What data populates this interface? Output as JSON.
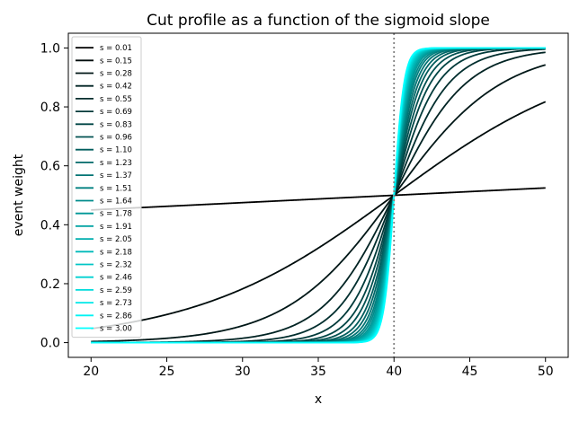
{
  "chart_data": {
    "type": "line",
    "title": "Cut profile as a function of the sigmoid slope",
    "xlabel": "x",
    "ylabel": "event weight",
    "xlim": [
      18.5,
      51.5
    ],
    "ylim": [
      -0.05,
      1.05
    ],
    "x_ticks": [
      20,
      25,
      30,
      35,
      40,
      45,
      50
    ],
    "y_ticks": [
      0.0,
      0.2,
      0.4,
      0.6,
      0.8,
      1.0
    ],
    "x_tick_labels": [
      "20",
      "25",
      "30",
      "35",
      "40",
      "45",
      "50"
    ],
    "y_tick_labels": [
      "0.0",
      "0.2",
      "0.4",
      "0.6",
      "0.8",
      "1.0"
    ],
    "function": "1 / (1 + exp(-s * (x - 40)))",
    "x_range": [
      20,
      50
    ],
    "cut_line": {
      "x": 40,
      "style": "dotted",
      "color": "#808080"
    },
    "legend_position": "upper-left",
    "grid": false,
    "color_start": "#000000",
    "color_end": "#00ffff",
    "series": [
      {
        "name": "s = 0.01",
        "slope": 0.01
      },
      {
        "name": "s = 0.15",
        "slope": 0.15
      },
      {
        "name": "s = 0.28",
        "slope": 0.28
      },
      {
        "name": "s = 0.42",
        "slope": 0.42
      },
      {
        "name": "s = 0.55",
        "slope": 0.55
      },
      {
        "name": "s = 0.69",
        "slope": 0.69
      },
      {
        "name": "s = 0.83",
        "slope": 0.83
      },
      {
        "name": "s = 0.96",
        "slope": 0.96
      },
      {
        "name": "s = 1.10",
        "slope": 1.1
      },
      {
        "name": "s = 1.23",
        "slope": 1.23
      },
      {
        "name": "s = 1.37",
        "slope": 1.37
      },
      {
        "name": "s = 1.51",
        "slope": 1.51
      },
      {
        "name": "s = 1.64",
        "slope": 1.64
      },
      {
        "name": "s = 1.78",
        "slope": 1.78
      },
      {
        "name": "s = 1.91",
        "slope": 1.91
      },
      {
        "name": "s = 2.05",
        "slope": 2.05
      },
      {
        "name": "s = 2.18",
        "slope": 2.18
      },
      {
        "name": "s = 2.32",
        "slope": 2.32
      },
      {
        "name": "s = 2.46",
        "slope": 2.46
      },
      {
        "name": "s = 2.59",
        "slope": 2.59
      },
      {
        "name": "s = 2.73",
        "slope": 2.73
      },
      {
        "name": "s = 2.86",
        "slope": 2.86
      },
      {
        "name": "s = 3.00",
        "slope": 3.0
      }
    ]
  }
}
